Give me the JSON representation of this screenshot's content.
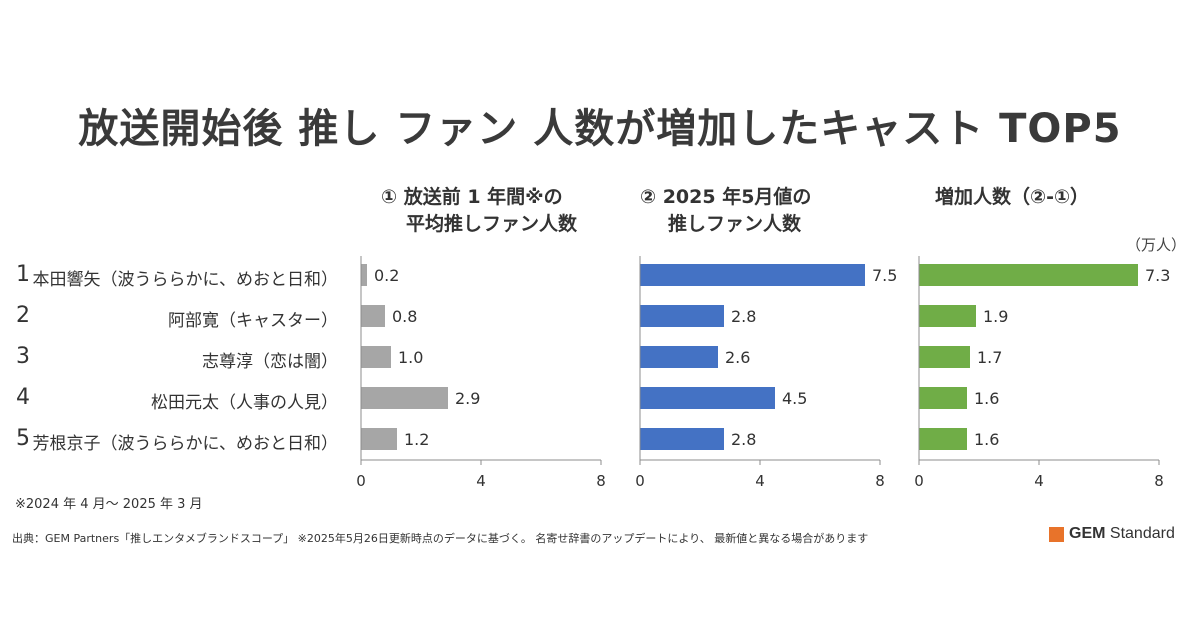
{
  "title": "放送開始後 推し ファン 人数が増加したキャスト TOP5",
  "column_headers": [
    {
      "line1": "① 放送前 1 年間※の",
      "line2": "平均推しファン人数"
    },
    {
      "line1": "② 2025 年5月値の",
      "line2": "推しファン人数"
    },
    {
      "line1": "増加人数（②-①）",
      "line2": ""
    }
  ],
  "unit": "（万人）",
  "ranks": [
    "1",
    "2",
    "3",
    "4",
    "5"
  ],
  "names": [
    "本田響矢（波うららかに、めおと日和）",
    "阿部寛（キャスター）",
    "志尊淳（恋は闇）",
    "松田元太（人事の人見）",
    "芳根京子（波うららかに、めおと日和）"
  ],
  "note": "※2024 年 4 月～ 2025 年 3 月",
  "source": "出典：GEM Partners「推しエンタメブランドスコープ」 ※2025年5月26日更新時点のデータに基づく。 名寄せ辞書のアップデートにより、 最新値と異なる場合があります",
  "logo": {
    "bold": "GEM",
    "text": " Standard",
    "mark_color": "#e8732a"
  },
  "chart_data": [
    {
      "type": "bar",
      "orientation": "horizontal",
      "categories": [
        "本田響矢（波うららかに、めおと日和）",
        "阿部寛（キャスター）",
        "志尊淳（恋は闇）",
        "松田元太（人事の人見）",
        "芳根京子（波うららかに、めおと日和）"
      ],
      "values": [
        0.2,
        0.8,
        1.0,
        2.9,
        1.2
      ],
      "labels": [
        "0.2",
        "0.8",
        "1.0",
        "2.9",
        "1.2"
      ],
      "xlim": [
        0,
        8
      ],
      "xticks": [
        "0",
        "4",
        "8"
      ],
      "color": "#a6a6a6"
    },
    {
      "type": "bar",
      "orientation": "horizontal",
      "categories": [
        "本田響矢（波うららかに、めおと日和）",
        "阿部寛（キャスター）",
        "志尊淳（恋は闇）",
        "松田元太（人事の人見）",
        "芳根京子（波うららかに、めおと日和）"
      ],
      "values": [
        7.5,
        2.8,
        2.6,
        4.5,
        2.8
      ],
      "labels": [
        "7.5",
        "2.8",
        "2.6",
        "4.5",
        "2.8"
      ],
      "xlim": [
        0,
        8
      ],
      "xticks": [
        "0",
        "4",
        "8"
      ],
      "color": "#4472c4"
    },
    {
      "type": "bar",
      "orientation": "horizontal",
      "categories": [
        "本田響矢（波うららかに、めおと日和）",
        "阿部寛（キャスター）",
        "志尊淳（恋は闇）",
        "松田元太（人事の人見）",
        "芳根京子（波うららかに、めおと日和）"
      ],
      "values": [
        7.3,
        1.9,
        1.7,
        1.6,
        1.6
      ],
      "labels": [
        "7.3",
        "1.9",
        "1.7",
        "1.6",
        "1.6"
      ],
      "xlim": [
        0,
        8
      ],
      "xticks": [
        "0",
        "4",
        "8"
      ],
      "color": "#70ad47"
    }
  ]
}
